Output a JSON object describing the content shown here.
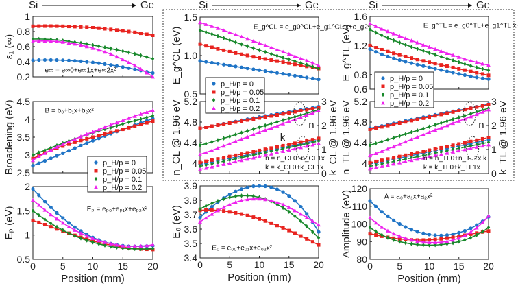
{
  "header": {
    "left": "Si",
    "right": "Ge"
  },
  "legend": [
    "p_H/p = 0",
    "p_H/p = 0.05",
    "p_H/p = 0.1",
    "p_H/p = 0.2"
  ],
  "colors": [
    "#1f74c6",
    "#e8231f",
    "#17882a",
    "#ee22ee"
  ],
  "chart_data": [
    {
      "id": "eps",
      "type": "line",
      "ylabel": "ε₁ (∞)",
      "ylim": [
        0.2,
        1
      ],
      "yticks": [
        "0.2",
        "0.4",
        "0.6",
        "0.8",
        "1"
      ],
      "ytickvals": [
        0.2,
        0.4,
        0.6,
        0.8,
        1
      ],
      "equation": "e∞ = e∞0+e∞1x+e∞2x²",
      "x": [
        0,
        5,
        10,
        15,
        20
      ],
      "series": [
        {
          "name": "p_H/p = 0",
          "values": [
            0.42,
            0.42,
            0.39,
            0.33,
            0.25
          ]
        },
        {
          "name": "p_H/p = 0.05",
          "values": [
            0.87,
            0.87,
            0.85,
            0.81,
            0.75
          ]
        },
        {
          "name": "p_H/p = 0.1",
          "values": [
            0.7,
            0.68,
            0.62,
            0.54,
            0.44
          ]
        },
        {
          "name": "p_H/p = 0.2",
          "values": [
            0.67,
            0.66,
            0.58,
            0.43,
            0.2
          ]
        }
      ]
    },
    {
      "id": "broad",
      "type": "line",
      "ylabel": "Broadening (eV)",
      "ylim": [
        2.5,
        4.5
      ],
      "yticks": [
        "2.5",
        "3",
        "3.5",
        "4",
        "4.5"
      ],
      "ytickvals": [
        2.5,
        3,
        3.5,
        4,
        4.5
      ],
      "equation": "B = b₀+b₁x+b₂x²",
      "x": [
        0,
        5,
        10,
        15,
        20
      ],
      "series": [
        {
          "name": "p_H/p = 0",
          "values": [
            2.7,
            3.05,
            3.4,
            3.72,
            4.02
          ]
        },
        {
          "name": "p_H/p = 0.05",
          "values": [
            2.9,
            3.25,
            3.5,
            3.72,
            3.95
          ]
        },
        {
          "name": "p_H/p = 0.1",
          "values": [
            3.0,
            3.33,
            3.62,
            3.87,
            4.1
          ]
        },
        {
          "name": "p_H/p = 0.2",
          "values": [
            2.85,
            3.3,
            3.65,
            3.97,
            4.25
          ]
        }
      ]
    },
    {
      "id": "ep",
      "type": "line",
      "ylabel": "Eₚ (eV)",
      "ylim": [
        0.5,
        2
      ],
      "yticks": [
        "0.5",
        "1",
        "1.5",
        "2"
      ],
      "ytickvals": [
        0.5,
        1,
        1.5,
        2
      ],
      "equation": "Eₚ = eₚ₀+eₚ₁x+eₚ₂x²",
      "xlabel": "Position (mm)",
      "xticks": [
        "0",
        "5",
        "10",
        "15",
        "20"
      ],
      "x": [
        0,
        5,
        10,
        15,
        20
      ],
      "series": [
        {
          "name": "p_H/p = 0",
          "values": [
            1.95,
            1.35,
            0.95,
            0.78,
            0.78
          ]
        },
        {
          "name": "p_H/p = 0.05",
          "values": [
            1.3,
            1.08,
            0.88,
            0.75,
            0.7
          ]
        },
        {
          "name": "p_H/p = 0.1",
          "values": [
            1.5,
            1.1,
            0.85,
            0.73,
            0.72
          ]
        },
        {
          "name": "p_H/p = 0.2",
          "values": [
            1.72,
            1.25,
            0.93,
            0.78,
            0.8
          ]
        }
      ]
    },
    {
      "id": "egcl",
      "type": "line",
      "ylabel": "E_g^CL (eV)",
      "ylim": [
        0.5,
        1.5
      ],
      "yticks": [
        "0.5",
        "1.0",
        "1.5"
      ],
      "ytickvals": [
        0.5,
        1,
        1.5
      ],
      "equation": "E_g^CL = e_g0^CL+e_g1^CL x+e_g2^CL x²",
      "x": [
        0,
        5,
        10,
        15,
        20
      ],
      "series": [
        {
          "name": "p_H/p = 0",
          "values": [
            0.93,
            0.87,
            0.81,
            0.75,
            0.69
          ]
        },
        {
          "name": "p_H/p = 0.05",
          "values": [
            1.15,
            1.05,
            0.97,
            0.9,
            0.83
          ]
        },
        {
          "name": "p_H/p = 0.1",
          "values": [
            1.33,
            1.2,
            1.07,
            0.95,
            0.83
          ]
        },
        {
          "name": "p_H/p = 0.2",
          "values": [
            1.43,
            1.3,
            1.16,
            1.02,
            0.87
          ]
        }
      ]
    },
    {
      "id": "ncl",
      "type": "line",
      "ylabel": "n_CL @ 1.96 eV",
      "ylabel_right": "k_CL @ 1.96 eV",
      "ylim": [
        3.8,
        5.2
      ],
      "yticks": [
        "4",
        "4.4",
        "4.8",
        "5.2"
      ],
      "ytickvals": [
        4,
        4.4,
        4.8,
        5.2
      ],
      "ylim_right": [
        0,
        3
      ],
      "yticks_right": [
        "0",
        "1",
        "2",
        "3"
      ],
      "ytickvals_right": [
        0,
        1,
        2,
        3
      ],
      "equation": "n = n_CL0+n_CL1x",
      "equation2": "k = k_CL0+k_CL1x",
      "n_label": "n",
      "k_label": "k",
      "x": [
        0,
        5,
        10,
        15,
        20
      ],
      "series": [
        {
          "name": "p_H/p = 0",
          "values": [
            4.68,
            4.79,
            4.9,
            5.0,
            5.1
          ]
        },
        {
          "name": "p_H/p = 0.05",
          "values": [
            4.68,
            4.78,
            4.88,
            4.98,
            5.08
          ]
        },
        {
          "name": "p_H/p = 0.1",
          "values": [
            4.35,
            4.52,
            4.7,
            4.87,
            5.04
          ]
        },
        {
          "name": "p_H/p = 0.2",
          "values": [
            4.17,
            4.38,
            4.6,
            4.81,
            5.02
          ]
        }
      ],
      "series_right": [
        {
          "name": "p_H/p = 0",
          "values": [
            0.38,
            0.63,
            0.88,
            1.13,
            1.4
          ]
        },
        {
          "name": "p_H/p = 0.05",
          "values": [
            0.46,
            0.71,
            0.96,
            1.21,
            1.46
          ]
        },
        {
          "name": "p_H/p = 0.1",
          "values": [
            0.3,
            0.56,
            0.82,
            1.08,
            1.35
          ]
        },
        {
          "name": "p_H/p = 0.2",
          "values": [
            0.17,
            0.44,
            0.71,
            0.98,
            1.25
          ]
        }
      ]
    },
    {
      "id": "e0",
      "type": "line",
      "ylabel": "E₀ (eV)",
      "ylim": [
        3.4,
        3.9
      ],
      "yticks": [
        "3.4",
        "3.5",
        "3.6",
        "3.7",
        "3.8",
        "3.9"
      ],
      "ytickvals": [
        3.4,
        3.5,
        3.6,
        3.7,
        3.8,
        3.9
      ],
      "equation": "E₀ = e₀₀+e₀₁x+e₀₂x²",
      "xlabel": "Position (mm)",
      "xticks": [
        "0",
        "5",
        "10",
        "15",
        "20"
      ],
      "x": [
        0,
        5,
        10,
        15,
        20
      ],
      "series": [
        {
          "name": "p_H/p = 0",
          "values": [
            3.68,
            3.84,
            3.9,
            3.83,
            3.58
          ]
        },
        {
          "name": "p_H/p = 0.05",
          "values": [
            3.73,
            3.72,
            3.67,
            3.59,
            3.49
          ]
        },
        {
          "name": "p_H/p = 0.1",
          "values": [
            3.74,
            3.82,
            3.82,
            3.72,
            3.54
          ]
        },
        {
          "name": "p_H/p = 0.2",
          "values": [
            3.65,
            3.77,
            3.81,
            3.75,
            3.63
          ]
        }
      ]
    },
    {
      "id": "egtl",
      "type": "line",
      "ylabel": "E_g^TL (eV)",
      "ylim": [
        0.6,
        1.6
      ],
      "yticks": [
        "0.6",
        "0.8",
        "1.2",
        "1.6"
      ],
      "ytickvals": [
        0.6,
        0.8,
        1.2,
        1.6
      ],
      "equation": "E_g^TL = e_g0^TL+e_g1^TL x+e_g2^TL x²",
      "x": [
        0,
        5,
        10,
        15,
        20
      ],
      "series": [
        {
          "name": "p_H/p = 0",
          "values": [
            1.15,
            1.0,
            0.9,
            0.81,
            0.74
          ]
        },
        {
          "name": "p_H/p = 0.05",
          "values": [
            1.2,
            1.07,
            0.97,
            0.88,
            0.79
          ]
        },
        {
          "name": "p_H/p = 0.1",
          "values": [
            1.42,
            1.24,
            1.1,
            0.97,
            0.86
          ]
        },
        {
          "name": "p_H/p = 0.2",
          "values": [
            1.5,
            1.33,
            1.18,
            1.04,
            0.93
          ]
        }
      ]
    },
    {
      "id": "ntl",
      "type": "line",
      "ylabel": "n_TL @ 1.96 eV",
      "ylabel_right": "k_TL @ 1.96 eV",
      "ylim": [
        3.8,
        5.2
      ],
      "yticks": [
        "4",
        "4.4",
        "4.8",
        "5.2"
      ],
      "ytickvals": [
        4,
        4.4,
        4.8,
        5.2
      ],
      "ylim_right": [
        0,
        3
      ],
      "yticks_right": [
        "0",
        "1",
        "2",
        "3"
      ],
      "ytickvals_right": [
        0,
        1,
        2,
        3
      ],
      "equation": "n = n_TL0+n_TL1x k",
      "equation2": "k = k_TL0+k_TL1x",
      "n_label": "n",
      "x": [
        0,
        5,
        10,
        15,
        20
      ],
      "series": [
        {
          "name": "p_H/p = 0",
          "values": [
            4.68,
            4.8,
            4.92,
            5.03,
            5.15
          ]
        },
        {
          "name": "p_H/p = 0.05",
          "values": [
            4.66,
            4.78,
            4.9,
            5.02,
            5.14
          ]
        },
        {
          "name": "p_H/p = 0.1",
          "values": [
            4.35,
            4.53,
            4.71,
            4.89,
            5.07
          ]
        },
        {
          "name": "p_H/p = 0.2",
          "values": [
            4.15,
            4.37,
            4.6,
            4.82,
            5.04
          ]
        }
      ],
      "series_right": [
        {
          "name": "p_H/p = 0",
          "values": [
            0.4,
            0.65,
            0.9,
            1.15,
            1.4
          ]
        },
        {
          "name": "p_H/p = 0.05",
          "values": [
            0.45,
            0.71,
            0.97,
            1.23,
            1.5
          ]
        },
        {
          "name": "p_H/p = 0.1",
          "values": [
            0.3,
            0.55,
            0.8,
            1.05,
            1.3
          ]
        },
        {
          "name": "p_H/p = 0.2",
          "values": [
            0.2,
            0.45,
            0.7,
            0.95,
            1.2
          ]
        }
      ]
    },
    {
      "id": "amp",
      "type": "line",
      "ylabel": "Amplitude (eV)",
      "ylim": [
        80,
        120
      ],
      "yticks": [
        "80",
        "90",
        "100",
        "110",
        "120"
      ],
      "ytickvals": [
        80,
        90,
        100,
        110,
        120
      ],
      "equation": "A = a₀+a₁x+a₂x²",
      "xlabel": "Position (mm)",
      "xticks": [
        "0",
        "5",
        "10",
        "15",
        "20"
      ],
      "x": [
        0,
        5,
        10,
        15,
        20
      ],
      "series": [
        {
          "name": "p_H/p = 0",
          "values": [
            113,
            100,
            94,
            95,
            104
          ]
        },
        {
          "name": "p_H/p = 0.05",
          "values": [
            94.5,
            91.5,
            91,
            93,
            96
          ]
        },
        {
          "name": "p_H/p = 0.1",
          "values": [
            98,
            90,
            88,
            90,
            98
          ]
        },
        {
          "name": "p_H/p = 0.2",
          "values": [
            103.5,
            93,
            89.5,
            92,
            104.5
          ]
        }
      ]
    }
  ]
}
